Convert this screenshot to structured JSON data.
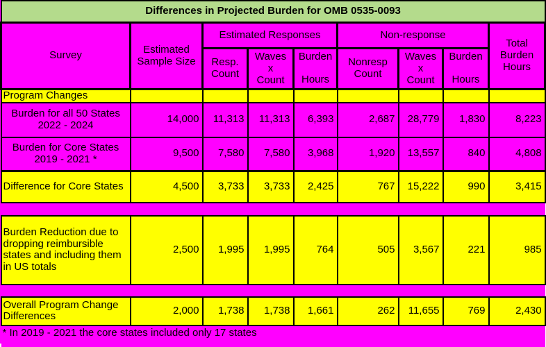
{
  "title": "Differences in Projected Burden for OMB 0535-0093",
  "colors": {
    "magenta": "#FF00FF",
    "yellow": "#FFFF00",
    "title_green": "#B4DB8C",
    "border": "#000000"
  },
  "header": {
    "survey": "Survey",
    "sample_size": "Estimated Sample Size",
    "responses_group": "Estimated Responses",
    "nonresponse_group": "Non-response",
    "total_burden": "Total Burden Hours",
    "resp_count": "Resp. Count",
    "resp_waves": [
      "Waves",
      "x",
      "Count"
    ],
    "resp_burden": [
      "Burden",
      "Hours"
    ],
    "nonresp_count": "Nonresp Count",
    "nonresp_waves": [
      "Waves",
      "x",
      "Count"
    ],
    "nonresp_burden": [
      "Burden",
      "Hours"
    ]
  },
  "section": {
    "label": "Program Changes"
  },
  "rows": [
    {
      "survey": "Burden for all 50 States 2022 - 2024",
      "values": [
        "14,000",
        "11,313",
        "11,313",
        "6,393",
        "2,687",
        "28,779",
        "1,830",
        "8,223"
      ]
    },
    {
      "survey": "Burden for Core States 2019 - 2021 *",
      "values": [
        "9,500",
        "7,580",
        "7,580",
        "3,968",
        "1,920",
        "13,557",
        "840",
        "4,808"
      ]
    },
    {
      "survey": "Difference for Core States",
      "values": [
        "4,500",
        "3,733",
        "3,733",
        "2,425",
        "767",
        "15,222",
        "990",
        "3,415"
      ]
    },
    {
      "survey": "Burden Reduction due to dropping reimbursible states and including them in US totals",
      "values": [
        "2,500",
        "1,995",
        "1,995",
        "764",
        "505",
        "3,567",
        "221",
        "985"
      ]
    },
    {
      "survey": "Overall Program Change Differences",
      "values": [
        "2,000",
        "1,738",
        "1,738",
        "1,661",
        "262",
        "11,655",
        "769",
        "2,430"
      ]
    }
  ],
  "footnote": "* In 2019 - 2021 the core states included only 17 states",
  "chart_data": {
    "type": "table",
    "title": "Differences in Projected Burden for OMB 0535-0093",
    "column_groups": [
      "",
      "",
      "Estimated Responses",
      "Estimated Responses",
      "Estimated Responses",
      "Non-response",
      "Non-response",
      "Non-response",
      ""
    ],
    "columns": [
      "Survey",
      "Estimated Sample Size",
      "Resp. Count",
      "Waves x Count",
      "Burden Hours",
      "Nonresp Count",
      "Waves x Count",
      "Burden Hours",
      "Total Burden Hours"
    ],
    "section": "Program Changes",
    "rows": [
      [
        "Burden for all 50 States 2022 - 2024",
        14000,
        11313,
        11313,
        6393,
        2687,
        28779,
        1830,
        8223
      ],
      [
        "Burden for Core States 2019 - 2021 *",
        9500,
        7580,
        7580,
        3968,
        1920,
        13557,
        840,
        4808
      ],
      [
        "Difference for Core States",
        4500,
        3733,
        3733,
        2425,
        767,
        15222,
        990,
        3415
      ],
      [
        "Burden Reduction due to dropping reimbursible states and including them in US totals",
        2500,
        1995,
        1995,
        764,
        505,
        3567,
        221,
        985
      ],
      [
        "Overall Program Change Differences",
        2000,
        1738,
        1738,
        1661,
        262,
        11655,
        769,
        2430
      ]
    ],
    "footnote": "* In 2019 - 2021 the core states included only 17 states"
  }
}
